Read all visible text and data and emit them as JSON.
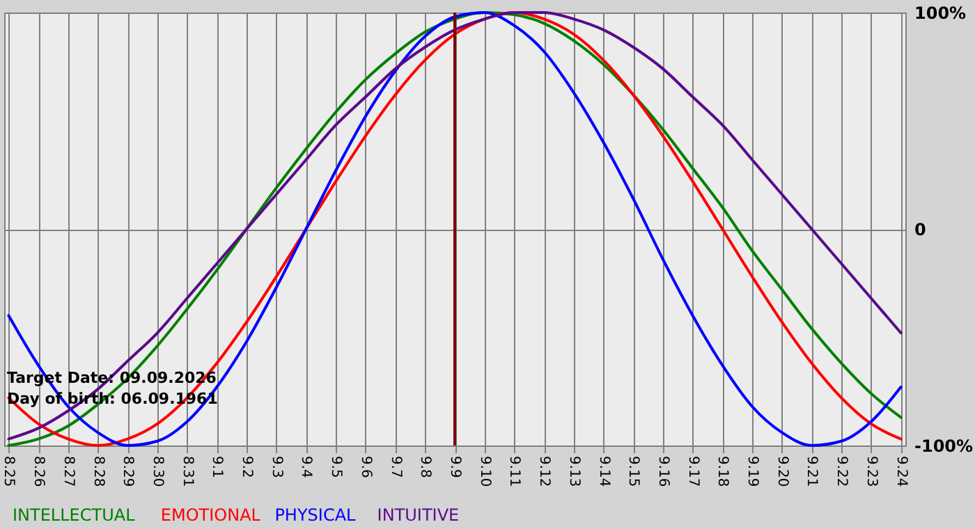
{
  "chart_data": {
    "type": "line",
    "categories": [
      "8.25",
      "8.26",
      "8.27",
      "8.28",
      "8.29",
      "8.30",
      "8.31",
      "9.1",
      "9.2",
      "9.3",
      "9.4",
      "9.5",
      "9.6",
      "9.7",
      "9.8",
      "9.9",
      "9.10",
      "9.11",
      "9.12",
      "9.13",
      "9.14",
      "9.15",
      "9.16",
      "9.17",
      "9.18",
      "9.19",
      "9.20",
      "9.21",
      "9.22",
      "9.23",
      "9.24"
    ],
    "series": [
      {
        "name": "INTELLECTUAL",
        "color": "#008000",
        "values": [
          -100,
          -97,
          -91,
          -81,
          -69,
          -54,
          -37,
          -19,
          0,
          19,
          37,
          54,
          69,
          81,
          91,
          97,
          100,
          99,
          95,
          87,
          76,
          62,
          46,
          28,
          10,
          -10,
          -28,
          -46,
          -62,
          -76,
          -87
        ]
      },
      {
        "name": "EMOTIONAL",
        "color": "#ff0000",
        "values": [
          -78,
          -90,
          -97,
          -100,
          -97,
          -90,
          -78,
          -62,
          -43,
          -22,
          0,
          22,
          43,
          62,
          78,
          90,
          97,
          100,
          97,
          90,
          78,
          62,
          43,
          22,
          0,
          -22,
          -43,
          -62,
          -78,
          -90,
          -97
        ]
      },
      {
        "name": "PHYSICAL",
        "color": "#0000ff",
        "values": [
          -40,
          -63,
          -82,
          -94,
          -100,
          -98,
          -89,
          -73,
          -52,
          -27,
          0,
          27,
          52,
          73,
          89,
          98,
          100,
          94,
          82,
          63,
          40,
          14,
          -14,
          -40,
          -63,
          -82,
          -94,
          -100,
          -98,
          -89,
          -73
        ]
      },
      {
        "name": "INTUITIVE",
        "color": "#5a0a8c",
        "values": [
          -97,
          -92,
          -84,
          -74,
          -61,
          -48,
          -32,
          -16,
          0,
          16,
          32,
          48,
          61,
          74,
          84,
          92,
          97,
          100,
          100,
          97,
          92,
          84,
          74,
          61,
          48,
          32,
          16,
          0,
          -16,
          -32,
          -48
        ]
      }
    ],
    "ylim": [
      -100,
      100
    ],
    "yticks": [
      {
        "value": -100,
        "label": "-100%"
      },
      0,
      {
        "value": 100,
        "label": "100%"
      }
    ],
    "ref_lines": [
      {
        "axis": "x",
        "value": "9.9",
        "color": "#800000"
      }
    ],
    "annotations": [
      "Target Date: 09.09.2026",
      "Day of birth: 06.09.1961"
    ],
    "grid": true,
    "legend": "bottom left",
    "line_style": "solid"
  }
}
